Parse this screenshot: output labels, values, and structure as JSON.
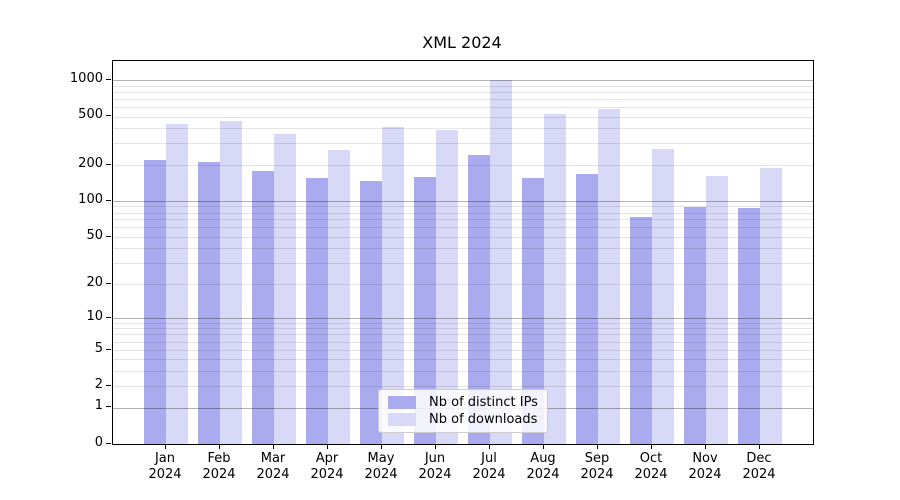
{
  "chart_data": {
    "type": "bar",
    "title": "XML 2024",
    "categories": [
      "Jan",
      "Feb",
      "Mar",
      "Apr",
      "May",
      "Jun",
      "Jul",
      "Aug",
      "Sep",
      "Oct",
      "Nov",
      "Dec"
    ],
    "category_year": "2024",
    "series": [
      {
        "name": "Nb of distinct IPs",
        "color": "#aaaaee",
        "values": [
          220,
          212,
          176,
          156,
          146,
          158,
          240,
          154,
          168,
          74,
          89,
          87
        ]
      },
      {
        "name": "Nb of downloads",
        "color": "#d8d8f7",
        "values": [
          435,
          462,
          358,
          266,
          410,
          385,
          1010,
          527,
          573,
          270,
          162,
          188
        ]
      }
    ],
    "y_ticks": [
      1000,
      500,
      200,
      100,
      50,
      20,
      10,
      5,
      2,
      1,
      0
    ],
    "y_scale": "log10(v+1)",
    "ylim": [
      0,
      1435
    ],
    "grid": {
      "major_lines": [
        1,
        10,
        100,
        1000
      ],
      "minor_multiples": [
        2,
        3,
        4,
        5,
        6,
        7,
        8,
        9
      ],
      "minor_decades": [
        1,
        10,
        100
      ]
    },
    "legend": {
      "position": "lower center"
    }
  }
}
